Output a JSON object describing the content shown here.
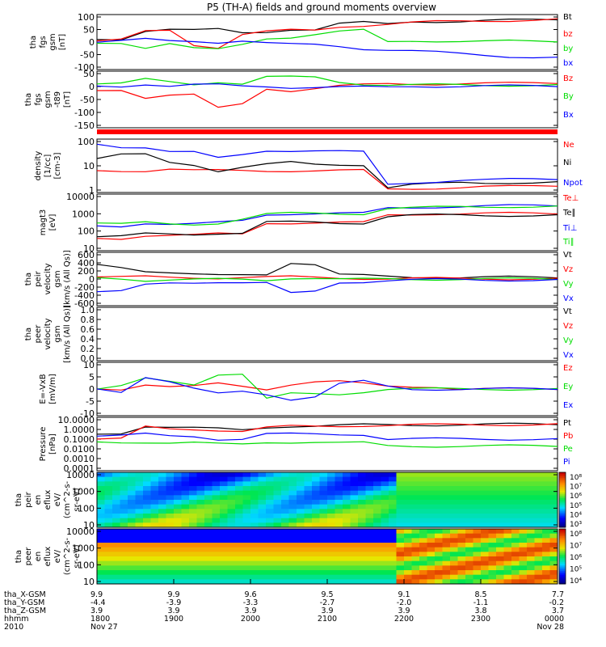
{
  "title": "P5 (TH-A) fields and ground moments overview",
  "colors": {
    "black": "#000000",
    "red": "#ff0000",
    "green": "#00dd00",
    "blue": "#0000ff"
  },
  "chart_data": [
    {
      "type": "line",
      "ylabel": [
        "tha",
        "fgs",
        "gsm",
        "[nT]"
      ],
      "yticks": [
        "100",
        "50",
        "0",
        "-50",
        "-100"
      ],
      "yrange": [
        -100,
        100
      ],
      "legend": [
        "Bt",
        "bz",
        "by",
        "bx"
      ],
      "series": [
        {
          "name": "Bt",
          "color": "black",
          "values": [
            10,
            12,
            45,
            50,
            45,
            48,
            35,
            40,
            50,
            48,
            70,
            75,
            70,
            80,
            80,
            80,
            82,
            84,
            86,
            88
          ]
        },
        {
          "name": "bz",
          "color": "red",
          "values": [
            5,
            8,
            40,
            45,
            -10,
            -20,
            30,
            40,
            45,
            45,
            60,
            65,
            70,
            75,
            78,
            80,
            82,
            84,
            86,
            88
          ]
        },
        {
          "name": "by",
          "color": "green",
          "values": [
            -5,
            -2,
            -20,
            -5,
            -25,
            -30,
            -10,
            15,
            20,
            30,
            40,
            45,
            0,
            5,
            5,
            4,
            3,
            3,
            2,
            2
          ]
        },
        {
          "name": "bx",
          "color": "blue",
          "values": [
            0,
            3,
            10,
            5,
            5,
            0,
            5,
            -5,
            -10,
            -10,
            -15,
            -25,
            -30,
            -35,
            -40,
            -45,
            -50,
            -55,
            -58,
            -60
          ]
        }
      ]
    },
    {
      "type": "line",
      "ylabel": [
        "tha",
        "fgs",
        "gsm",
        "-t89",
        "[nT]"
      ],
      "yticks": [
        "50",
        "0",
        "-50",
        "-100",
        "-150"
      ],
      "yrange": [
        -180,
        60
      ],
      "legend": [
        "Bz",
        "By",
        "Bx"
      ],
      "series": [
        {
          "name": "Bz",
          "color": "red",
          "values": [
            -20,
            -15,
            -50,
            -40,
            -40,
            -100,
            -80,
            -10,
            -20,
            -10,
            0,
            5,
            10,
            10,
            10,
            12,
            12,
            12,
            13,
            14
          ]
        },
        {
          "name": "By",
          "color": "green",
          "values": [
            10,
            10,
            30,
            20,
            10,
            20,
            10,
            40,
            40,
            40,
            20,
            10,
            5,
            5,
            5,
            5,
            5,
            5,
            5,
            5
          ]
        },
        {
          "name": "Bx",
          "color": "blue",
          "values": [
            0,
            0,
            10,
            0,
            5,
            5,
            0,
            0,
            -5,
            -5,
            -5,
            -5,
            -5,
            0,
            0,
            0,
            0,
            0,
            0,
            0
          ]
        }
      ]
    },
    {
      "type": "line",
      "ylog": true,
      "ylabel": [
        "density",
        "[1/cc]",
        "[cm-3]"
      ],
      "yticks": [
        "100",
        "10",
        "1"
      ],
      "yrange": [
        1,
        300
      ],
      "legend": [
        "Ne",
        "Ni",
        "Npot"
      ],
      "series": [
        {
          "name": "Ne",
          "color": "red",
          "values": [
            10,
            10,
            10,
            12,
            10,
            10,
            10,
            10,
            10,
            10,
            10,
            10,
            1.2,
            1.3,
            1.4,
            1.5,
            1.6,
            1.6,
            1.7,
            1.8
          ]
        },
        {
          "name": "Ni",
          "color": "black",
          "values": [
            40,
            60,
            60,
            25,
            20,
            10,
            15,
            20,
            25,
            20,
            20,
            20,
            1.5,
            2,
            2.2,
            2.5,
            2.5,
            2.6,
            2.6,
            2.7
          ]
        },
        {
          "name": "Npot",
          "color": "blue",
          "values": [
            200,
            150,
            150,
            90,
            80,
            40,
            60,
            100,
            100,
            100,
            90,
            80,
            2,
            2.5,
            3,
            3.5,
            3.5,
            3.6,
            3.7,
            3.8
          ]
        }
      ]
    },
    {
      "type": "line",
      "ylog": true,
      "ylabel": [
        "magt3",
        "[eV]"
      ],
      "yticks": [
        "10000",
        "1000",
        "100",
        "10"
      ],
      "yrange": [
        10,
        10000
      ],
      "legend": [
        "Te⊥",
        "Te∥",
        "Ti⊥",
        "Ti∥"
      ],
      "series": [
        {
          "name": "Te⊥",
          "color": "red",
          "values": [
            40,
            40,
            60,
            60,
            60,
            70,
            70,
            300,
            300,
            300,
            300,
            300,
            800,
            900,
            1000,
            1000,
            1000,
            1000,
            1000,
            1000
          ]
        },
        {
          "name": "Te∥",
          "color": "black",
          "values": [
            50,
            50,
            70,
            70,
            70,
            80,
            80,
            320,
            320,
            320,
            300,
            300,
            700,
            800,
            800,
            800,
            800,
            800,
            800,
            800
          ]
        },
        {
          "name": "Ti⊥",
          "color": "blue",
          "values": [
            200,
            200,
            300,
            250,
            250,
            300,
            400,
            900,
            1000,
            1000,
            1000,
            1000,
            2000,
            2200,
            2400,
            2500,
            2600,
            2700,
            2800,
            2800
          ]
        },
        {
          "name": "Ti∥",
          "color": "green",
          "values": [
            300,
            250,
            300,
            250,
            250,
            300,
            500,
            900,
            1000,
            1000,
            1000,
            1000,
            2000,
            2100,
            2200,
            2300,
            2400,
            2500,
            2500,
            2500
          ]
        }
      ]
    },
    {
      "type": "line",
      "ylabel": [
        "tha",
        "peir",
        "velocity",
        "gsm",
        "[km/s (All Qs)]"
      ],
      "yticks": [
        "600",
        "400",
        "200",
        "0",
        "-200",
        "-400",
        "-600"
      ],
      "yrange": [
        -600,
        600
      ],
      "legend": [
        "Vt",
        "Vz",
        "Vy",
        "Vx"
      ],
      "series": [
        {
          "name": "Vt",
          "color": "black",
          "values": [
            350,
            300,
            200,
            150,
            100,
            80,
            100,
            120,
            400,
            350,
            100,
            80,
            60,
            50,
            50,
            40,
            40,
            40,
            40,
            40
          ]
        },
        {
          "name": "Vz",
          "color": "red",
          "values": [
            50,
            40,
            50,
            40,
            40,
            30,
            40,
            40,
            50,
            40,
            30,
            20,
            10,
            10,
            10,
            10,
            10,
            10,
            10,
            10
          ]
        },
        {
          "name": "Vy",
          "color": "green",
          "values": [
            30,
            20,
            -30,
            -20,
            -20,
            -10,
            -10,
            -20,
            30,
            20,
            -10,
            -10,
            0,
            0,
            0,
            0,
            0,
            0,
            0,
            0
          ]
        },
        {
          "name": "Vx",
          "color": "blue",
          "values": [
            -300,
            -300,
            -150,
            -100,
            -80,
            -60,
            -80,
            -100,
            -350,
            -300,
            -80,
            -60,
            -30,
            -20,
            -20,
            -20,
            -20,
            -20,
            -20,
            -20
          ]
        }
      ]
    },
    {
      "type": "line",
      "ylabel": [
        "tha",
        "peer",
        "velocity",
        "gsm",
        "[km/s (All Qs)]"
      ],
      "yticks": [
        "1.0",
        "0.8",
        "0.6",
        "0.4",
        "0.2",
        "0.0"
      ],
      "yrange": [
        0,
        1
      ],
      "legend": [
        "Vt",
        "Vz",
        "Vy",
        "Vx"
      ],
      "series": []
    },
    {
      "type": "line",
      "ylabel": [
        "E=-VxB",
        "[mV/m]"
      ],
      "yticks": [
        "10",
        "5",
        "0",
        "-5",
        "-10"
      ],
      "yrange": [
        -10,
        10
      ],
      "legend": [
        "Ez",
        "Ey",
        "Ex"
      ],
      "series": [
        {
          "name": "Ez",
          "color": "red",
          "values": [
            0,
            0,
            2,
            1,
            1,
            2,
            1,
            0,
            2,
            3,
            3,
            2,
            1,
            1,
            1,
            0,
            0,
            0,
            0,
            0
          ]
        },
        {
          "name": "Ey",
          "color": "green",
          "values": [
            0,
            1,
            4,
            3,
            2,
            6,
            6,
            -4,
            -2,
            -2,
            -2,
            -1,
            0,
            0,
            0,
            0,
            0,
            0,
            0,
            0
          ]
        },
        {
          "name": "Ex",
          "color": "blue",
          "values": [
            0,
            -1,
            5,
            3,
            0,
            -2,
            -1,
            -2,
            -4,
            -3,
            2,
            3,
            1,
            0,
            0,
            0,
            0,
            0,
            0,
            0
          ]
        }
      ]
    },
    {
      "type": "line",
      "ylog": true,
      "ylabel": [
        "Pressure",
        "[nPa]"
      ],
      "yticks": [
        "10.0000",
        "1.0000",
        "0.1000",
        "0.0100",
        "0.0010",
        "0.0001"
      ],
      "yrange": [
        0.0001,
        10
      ],
      "legend": [
        "Pt",
        "Pb",
        "Pe",
        "Pi"
      ],
      "series": [
        {
          "name": "Pt",
          "color": "black",
          "values": [
            0.3,
            0.4,
            2,
            1.5,
            1.2,
            1,
            0.8,
            1.5,
            2,
            2,
            2.2,
            2.5,
            2.5,
            2.6,
            2.6,
            2.7,
            2.8,
            2.9,
            3,
            3
          ]
        },
        {
          "name": "Pb",
          "color": "red",
          "values": [
            0.1,
            0.1,
            1.5,
            1,
            1,
            0.8,
            0.6,
            1.3,
            1.8,
            1.8,
            2,
            2.3,
            2.4,
            2.5,
            2.5,
            2.6,
            2.7,
            2.8,
            2.9,
            3
          ]
        },
        {
          "name": "Pe",
          "color": "green",
          "values": [
            0.05,
            0.05,
            0.05,
            0.04,
            0.04,
            0.03,
            0.03,
            0.05,
            0.05,
            0.05,
            0.04,
            0.04,
            0.02,
            0.02,
            0.02,
            0.02,
            0.02,
            0.02,
            0.02,
            0.02
          ]
        },
        {
          "name": "Pi",
          "color": "blue",
          "values": [
            0.2,
            0.2,
            0.3,
            0.2,
            0.2,
            0.1,
            0.1,
            0.3,
            0.3,
            0.3,
            0.3,
            0.3,
            0.1,
            0.1,
            0.1,
            0.1,
            0.1,
            0.1,
            0.1,
            0.1
          ]
        }
      ]
    },
    {
      "type": "heatmap",
      "ylabel": [
        "tha",
        "peir",
        "en",
        "eflux",
        "eV/",
        "(cm^2-s-",
        "sr-eV)"
      ],
      "yticks": [
        "10000",
        "1000",
        "100",
        "10"
      ],
      "colorbar": [
        "10⁸",
        "10⁷",
        "10⁶",
        "10⁵",
        "10⁴",
        "10³"
      ]
    },
    {
      "type": "heatmap",
      "ylabel": [
        "tha",
        "peer",
        "en",
        "eflux",
        "eV/",
        "(cm^2-s-",
        "sr-eV)"
      ],
      "yticks": [
        "10000",
        "1000",
        "100",
        "10"
      ],
      "colorbar": [
        "10⁸",
        "10⁷",
        "10⁶",
        "10⁵",
        "10⁴"
      ]
    }
  ],
  "xaxis": {
    "rows": [
      {
        "label": "tha_X-GSM",
        "values": [
          "9.9",
          "9.9",
          "9.6",
          "9.5",
          "9.1",
          "8.5",
          "7.7"
        ]
      },
      {
        "label": "tha_Y-GSM",
        "values": [
          "-4.4",
          "-3.9",
          "-3.3",
          "-2.7",
          "-2.0",
          "-1.1",
          "-0.2"
        ]
      },
      {
        "label": "tha_Z-GSM",
        "values": [
          "3.9",
          "3.9",
          "3.9",
          "3.9",
          "3.9",
          "3.8",
          "3.7"
        ]
      },
      {
        "label": "hhmm",
        "values": [
          "1800",
          "1900",
          "2000",
          "2100",
          "2200",
          "2300",
          "0000"
        ]
      },
      {
        "label": "2010",
        "values": [
          "Nov 27",
          "",
          "",
          "",
          "",
          "",
          "Nov 28"
        ]
      }
    ]
  }
}
